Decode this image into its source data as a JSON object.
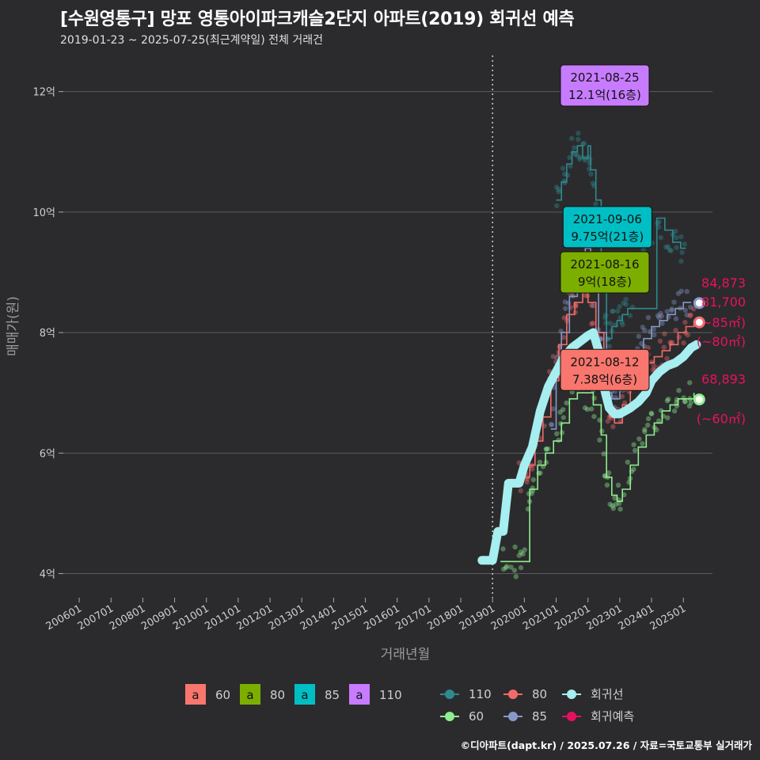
{
  "header": {
    "title": "[수원영통구] 망포 영통아이파크캐슬2단지 아파트(2019) 회귀선 예측",
    "subtitle": "2019-01-23 ~ 2025-07-25(최근계약일) 전체 거래건"
  },
  "caption": "©디아파트(dapt.kr) / 2025.07.26 / 자료=국토교통부 실거래가",
  "colors": {
    "background": "#2b2b2d",
    "grid": "#5c5c5e",
    "s60": "#f8766d",
    "s80": "#7cae00",
    "s85": "#00bfc4",
    "s110": "#c77cff",
    "line60": "#90ee90",
    "line80": "#f16b6b",
    "line85": "#8899c9",
    "line110": "#2f8a8e",
    "regression": "#a6eef0",
    "forecast": "#e8115f"
  },
  "chart_data": {
    "type": "line",
    "title": "[수원영통구] 망포 영통아이파크캐슬2단지 아파트(2019) 회귀선 예측",
    "subtitle": "2019-01-23 ~ 2025-07-25(최근계약일) 전체 거래건",
    "xlabel": "거래년월",
    "ylabel": "매매가(원)",
    "xlim": [
      "2005-07",
      "2025-12"
    ],
    "ylim": [
      3.6,
      12.6
    ],
    "x_ticks": [
      "200601",
      "200701",
      "200801",
      "200901",
      "201001",
      "201101",
      "201201",
      "201301",
      "201401",
      "201501",
      "201601",
      "201701",
      "201801",
      "201901",
      "202001",
      "202101",
      "202201",
      "202301",
      "202401",
      "202501"
    ],
    "y_ticks": [
      {
        "v": 4,
        "label": "4억"
      },
      {
        "v": 6,
        "label": "6억"
      },
      {
        "v": 8,
        "label": "8억"
      },
      {
        "v": 10,
        "label": "10억"
      },
      {
        "v": 12,
        "label": "12억"
      }
    ],
    "grid": true,
    "vline": "2019-01",
    "series": [
      {
        "name": "110",
        "kind": "line",
        "colorKey": "line110",
        "points": [
          [
            "2021-01",
            10.2
          ],
          [
            "2021-03",
            10.5
          ],
          [
            "2021-05",
            10.8
          ],
          [
            "2021-07",
            11.0
          ],
          [
            "2021-09",
            11.1
          ],
          [
            "2021-11",
            10.9
          ],
          [
            "2022-01",
            11.1
          ],
          [
            "2022-02",
            10.7
          ],
          [
            "2022-04",
            10.2
          ],
          [
            "2022-06",
            9.0
          ],
          [
            "2022-08",
            7.9
          ],
          [
            "2022-10",
            8.1
          ],
          [
            "2022-12",
            8.2
          ],
          [
            "2023-02",
            8.3
          ],
          [
            "2023-04",
            8.4
          ],
          [
            "2024-03",
            9.9
          ],
          [
            "2024-06",
            9.7
          ],
          [
            "2024-09",
            9.5
          ],
          [
            "2024-12",
            9.4
          ],
          [
            "2025-02",
            9.4
          ]
        ]
      },
      {
        "name": "85",
        "kind": "line",
        "colorKey": "line85",
        "points": [
          [
            "2020-11",
            6.4
          ],
          [
            "2021-01",
            7.3
          ],
          [
            "2021-03",
            8.0
          ],
          [
            "2021-06",
            8.6
          ],
          [
            "2021-09",
            9.1
          ],
          [
            "2021-12",
            9.4
          ],
          [
            "2022-02",
            9.0
          ],
          [
            "2022-05",
            8.0
          ],
          [
            "2022-08",
            7.0
          ],
          [
            "2022-10",
            6.9
          ],
          [
            "2023-01",
            7.2
          ],
          [
            "2023-04",
            7.4
          ],
          [
            "2023-07",
            7.6
          ],
          [
            "2023-10",
            7.9
          ],
          [
            "2024-01",
            8.1
          ],
          [
            "2024-04",
            8.2
          ],
          [
            "2024-07",
            8.3
          ],
          [
            "2024-10",
            8.4
          ],
          [
            "2025-01",
            8.5
          ],
          [
            "2025-04",
            8.5
          ]
        ]
      },
      {
        "name": "80",
        "kind": "line",
        "colorKey": "line80",
        "points": [
          [
            "2019-10",
            5.6
          ],
          [
            "2020-01",
            5.6
          ],
          [
            "2020-03",
            5.8
          ],
          [
            "2020-05",
            6.2
          ],
          [
            "2020-08",
            6.6
          ],
          [
            "2020-11",
            7.2
          ],
          [
            "2021-02",
            7.8
          ],
          [
            "2021-05",
            8.3
          ],
          [
            "2021-08",
            8.5
          ],
          [
            "2021-11",
            8.7
          ],
          [
            "2022-01",
            8.5
          ],
          [
            "2022-04",
            8.0
          ],
          [
            "2022-07",
            7.2
          ],
          [
            "2022-09",
            6.6
          ],
          [
            "2022-11",
            6.5
          ],
          [
            "2023-02",
            6.8
          ],
          [
            "2023-05",
            7.1
          ],
          [
            "2023-08",
            7.3
          ],
          [
            "2023-11",
            7.5
          ],
          [
            "2024-02",
            7.6
          ],
          [
            "2024-05",
            7.7
          ],
          [
            "2024-08",
            7.8
          ],
          [
            "2024-11",
            8.0
          ],
          [
            "2025-02",
            8.1
          ],
          [
            "2025-05",
            8.2
          ]
        ]
      },
      {
        "name": "60",
        "kind": "line",
        "colorKey": "line60",
        "points": [
          [
            "2019-04",
            4.2
          ],
          [
            "2019-07",
            4.2
          ],
          [
            "2019-10",
            4.2
          ],
          [
            "2020-01",
            4.2
          ],
          [
            "2020-03",
            5.4
          ],
          [
            "2020-06",
            5.8
          ],
          [
            "2020-09",
            6.0
          ],
          [
            "2020-12",
            6.2
          ],
          [
            "2021-03",
            6.5
          ],
          [
            "2021-06",
            6.9
          ],
          [
            "2021-09",
            7.0
          ],
          [
            "2021-12",
            7.0
          ],
          [
            "2022-03",
            6.8
          ],
          [
            "2022-06",
            6.3
          ],
          [
            "2022-08",
            5.6
          ],
          [
            "2022-10",
            5.3
          ],
          [
            "2022-12",
            5.2
          ],
          [
            "2023-02",
            5.4
          ],
          [
            "2023-05",
            5.8
          ],
          [
            "2023-08",
            6.1
          ],
          [
            "2023-11",
            6.3
          ],
          [
            "2024-02",
            6.5
          ],
          [
            "2024-05",
            6.7
          ],
          [
            "2024-08",
            6.8
          ],
          [
            "2024-11",
            6.9
          ],
          [
            "2025-02",
            6.9
          ],
          [
            "2025-05",
            7.0
          ]
        ]
      },
      {
        "name": "회귀선",
        "kind": "regression",
        "colorKey": "regression",
        "points": [
          [
            "2018-09",
            4.22
          ],
          [
            "2019-01",
            4.22
          ],
          [
            "2019-03",
            4.7
          ],
          [
            "2019-05",
            4.7
          ],
          [
            "2019-07",
            5.5
          ],
          [
            "2019-11",
            5.5
          ],
          [
            "2020-01",
            5.8
          ],
          [
            "2020-04",
            6.1
          ],
          [
            "2020-07",
            6.7
          ],
          [
            "2020-10",
            7.1
          ],
          [
            "2021-01",
            7.35
          ],
          [
            "2021-04",
            7.6
          ],
          [
            "2021-07",
            7.75
          ],
          [
            "2021-10",
            7.85
          ],
          [
            "2022-01",
            7.95
          ],
          [
            "2022-03",
            8.0
          ],
          [
            "2022-05",
            7.7
          ],
          [
            "2022-07",
            7.1
          ],
          [
            "2022-09",
            6.75
          ],
          [
            "2022-11",
            6.65
          ],
          [
            "2023-01",
            6.65
          ],
          [
            "2023-03",
            6.7
          ],
          [
            "2023-05",
            6.75
          ],
          [
            "2023-08",
            6.85
          ],
          [
            "2023-11",
            7.0
          ],
          [
            "2024-01",
            7.2
          ],
          [
            "2024-04",
            7.35
          ],
          [
            "2024-07",
            7.45
          ],
          [
            "2024-10",
            7.5
          ],
          [
            "2025-01",
            7.6
          ],
          [
            "2025-04",
            7.75
          ],
          [
            "2025-06",
            7.8
          ]
        ]
      }
    ],
    "forecast": [
      {
        "name": "85",
        "x": "2025-07",
        "y": 8.49,
        "colorKey": "line85",
        "value_label": "84,873",
        "area_label": "(~85㎡)"
      },
      {
        "name": "80",
        "x": "2025-07",
        "y": 8.17,
        "colorKey": "line80",
        "value_label": "81,700",
        "area_label": "(~80㎡)"
      },
      {
        "name": "60",
        "x": "2025-07",
        "y": 6.89,
        "colorKey": "line60",
        "value_label": "68,893",
        "area_label": "(~60㎡)"
      }
    ],
    "annotations": [
      {
        "date": "2021-08-25",
        "text": "12.1억(16층)",
        "x": "2021-08",
        "y": 12.1,
        "colorKey": "s110"
      },
      {
        "date": "2021-09-06",
        "text": "9.75억(21층)",
        "x": "2021-09",
        "y": 9.75,
        "colorKey": "s85"
      },
      {
        "date": "2021-08-16",
        "text": "9억(18층)",
        "x": "2021-08",
        "y": 9.0,
        "colorKey": "s80"
      },
      {
        "date": "2021-08-12",
        "text": "7.38억(6층)",
        "x": "2021-08",
        "y": 7.38,
        "colorKey": "s60"
      }
    ],
    "scatter_description": "Individual transaction points (semi-transparent) cluster along each area line from 2020 through 2025.",
    "legend_box": {
      "position": "bottom",
      "items": [
        {
          "glyph": "a",
          "label": "60",
          "colorKey": "s60"
        },
        {
          "glyph": "a",
          "label": "80",
          "colorKey": "s80"
        },
        {
          "glyph": "a",
          "label": "85",
          "colorKey": "s85"
        },
        {
          "glyph": "a",
          "label": "110",
          "colorKey": "s110"
        }
      ]
    },
    "legend_lines": {
      "position": "bottom",
      "items": [
        {
          "label": "110",
          "colorKey": "line110"
        },
        {
          "label": "80",
          "colorKey": "line80"
        },
        {
          "label": "회귀선",
          "colorKey": "regression"
        },
        {
          "label": "60",
          "colorKey": "line60"
        },
        {
          "label": "85",
          "colorKey": "line85"
        },
        {
          "label": "회귀예측",
          "colorKey": "forecast"
        }
      ]
    }
  }
}
